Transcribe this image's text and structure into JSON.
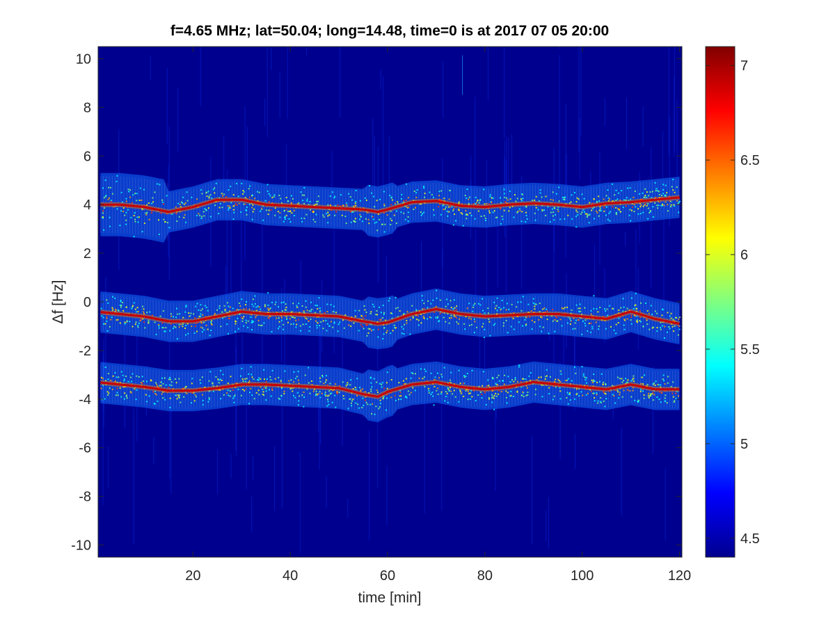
{
  "chart_data": {
    "type": "heatmap",
    "title": "f=4.65 MHz;  lat=50.04; long=14.48, time=0 is at 2017 07 05 20:00",
    "xlabel": "time [min]",
    "ylabel": "Δf [Hz]",
    "xlim": [
      0.5,
      120.5
    ],
    "ylim": [
      -10.5,
      10.5
    ],
    "x_ticks": [
      20,
      40,
      60,
      80,
      100,
      120
    ],
    "y_ticks": [
      -10,
      -8,
      -6,
      -4,
      -2,
      0,
      2,
      4,
      6,
      8,
      10
    ],
    "x_tick_labels": [
      "20",
      "40",
      "60",
      "80",
      "100",
      "120"
    ],
    "y_tick_labels": [
      "-10",
      "-8",
      "-6",
      "-4",
      "-2",
      "0",
      "2",
      "4",
      "6",
      "8",
      "10"
    ],
    "colorbar": {
      "colormap": "jet",
      "clim": [
        4.4,
        7.1
      ],
      "ticks": [
        4.5,
        5,
        5.5,
        6,
        6.5,
        7
      ],
      "tick_labels": [
        "4.5",
        "5",
        "5.5",
        "6",
        "6.5",
        "7"
      ]
    },
    "grid": false,
    "background_color": "#00008f",
    "series": [
      {
        "x": [
          0,
          5,
          10,
          15,
          20,
          25,
          30,
          35,
          40,
          45,
          50,
          55,
          58,
          60,
          65,
          70,
          75,
          80,
          85,
          90,
          95,
          100,
          105,
          110,
          115,
          120
        ],
        "y": [
          4.0,
          4.0,
          3.9,
          3.7,
          3.9,
          4.2,
          4.2,
          4.0,
          3.95,
          3.9,
          3.85,
          3.8,
          3.7,
          3.8,
          4.1,
          4.15,
          3.95,
          3.9,
          4.0,
          4.05,
          4.0,
          3.9,
          4.05,
          4.1,
          4.2,
          4.3
        ]
      },
      {
        "x": [
          0,
          5,
          10,
          15,
          20,
          25,
          30,
          35,
          40,
          45,
          50,
          55,
          58,
          60,
          65,
          70,
          75,
          80,
          85,
          90,
          95,
          100,
          105,
          110,
          115,
          120
        ],
        "y": [
          -0.4,
          -0.5,
          -0.6,
          -0.8,
          -0.8,
          -0.6,
          -0.4,
          -0.5,
          -0.5,
          -0.55,
          -0.6,
          -0.8,
          -0.9,
          -0.85,
          -0.5,
          -0.3,
          -0.5,
          -0.6,
          -0.55,
          -0.5,
          -0.5,
          -0.6,
          -0.7,
          -0.4,
          -0.7,
          -0.9
        ]
      },
      {
        "x": [
          0,
          5,
          10,
          15,
          20,
          25,
          30,
          35,
          40,
          45,
          50,
          55,
          58,
          60,
          65,
          70,
          75,
          80,
          85,
          90,
          95,
          100,
          105,
          110,
          115,
          120
        ],
        "y": [
          -3.3,
          -3.4,
          -3.5,
          -3.65,
          -3.65,
          -3.55,
          -3.4,
          -3.4,
          -3.45,
          -3.5,
          -3.55,
          -3.8,
          -3.9,
          -3.7,
          -3.4,
          -3.3,
          -3.5,
          -3.6,
          -3.5,
          -3.3,
          -3.4,
          -3.5,
          -3.6,
          -3.4,
          -3.6,
          -3.6
        ]
      }
    ]
  }
}
